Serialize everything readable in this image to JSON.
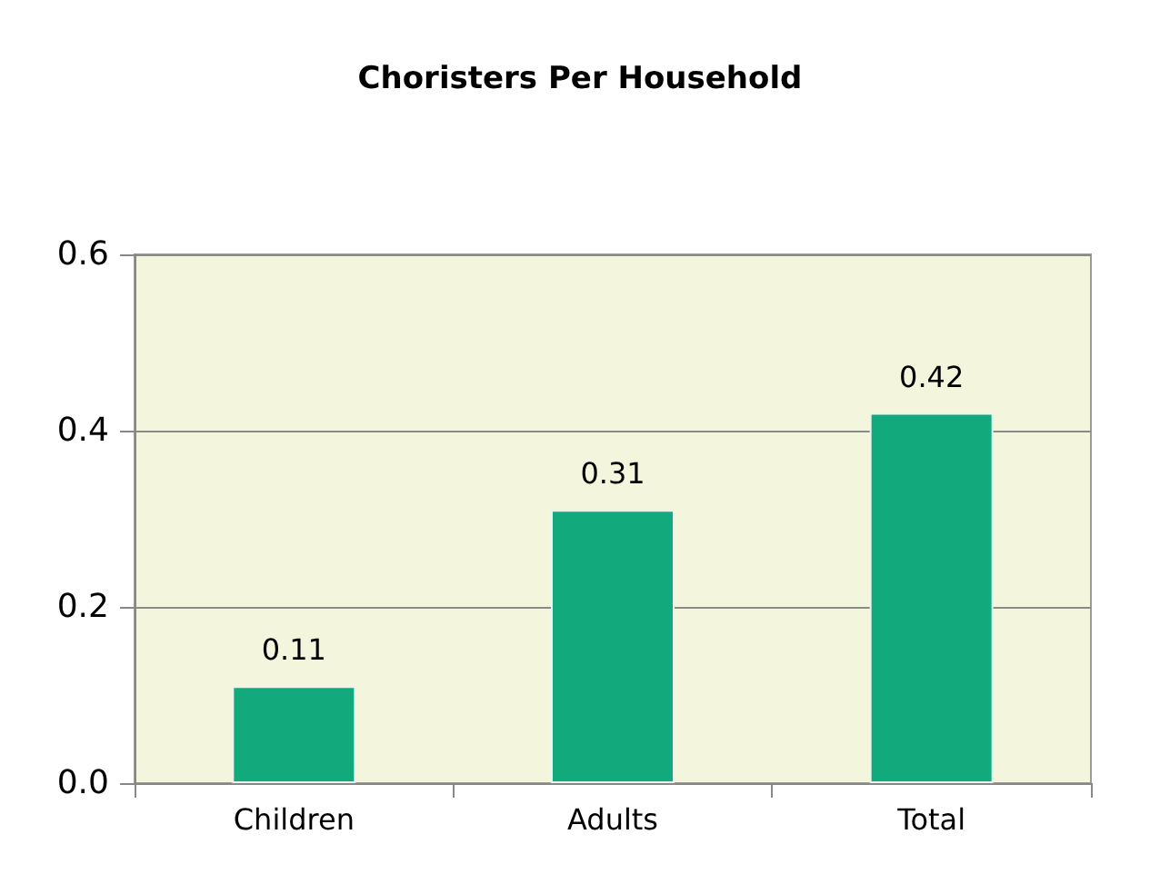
{
  "chart_data": {
    "type": "bar",
    "title": "Choristers Per Household",
    "categories": [
      "Children",
      "Adults",
      "Total"
    ],
    "values": [
      0.11,
      0.31,
      0.42
    ],
    "color": "#12a97c",
    "ylim": [
      0,
      0.6
    ],
    "yticks": [
      {
        "value": 0,
        "label": "0.0"
      },
      {
        "value": 0.2,
        "label": "0.2"
      },
      {
        "value": 0.4,
        "label": "0.4"
      },
      {
        "value": 0.6,
        "label": "0.6"
      }
    ],
    "grid": true,
    "data_labels": true
  }
}
